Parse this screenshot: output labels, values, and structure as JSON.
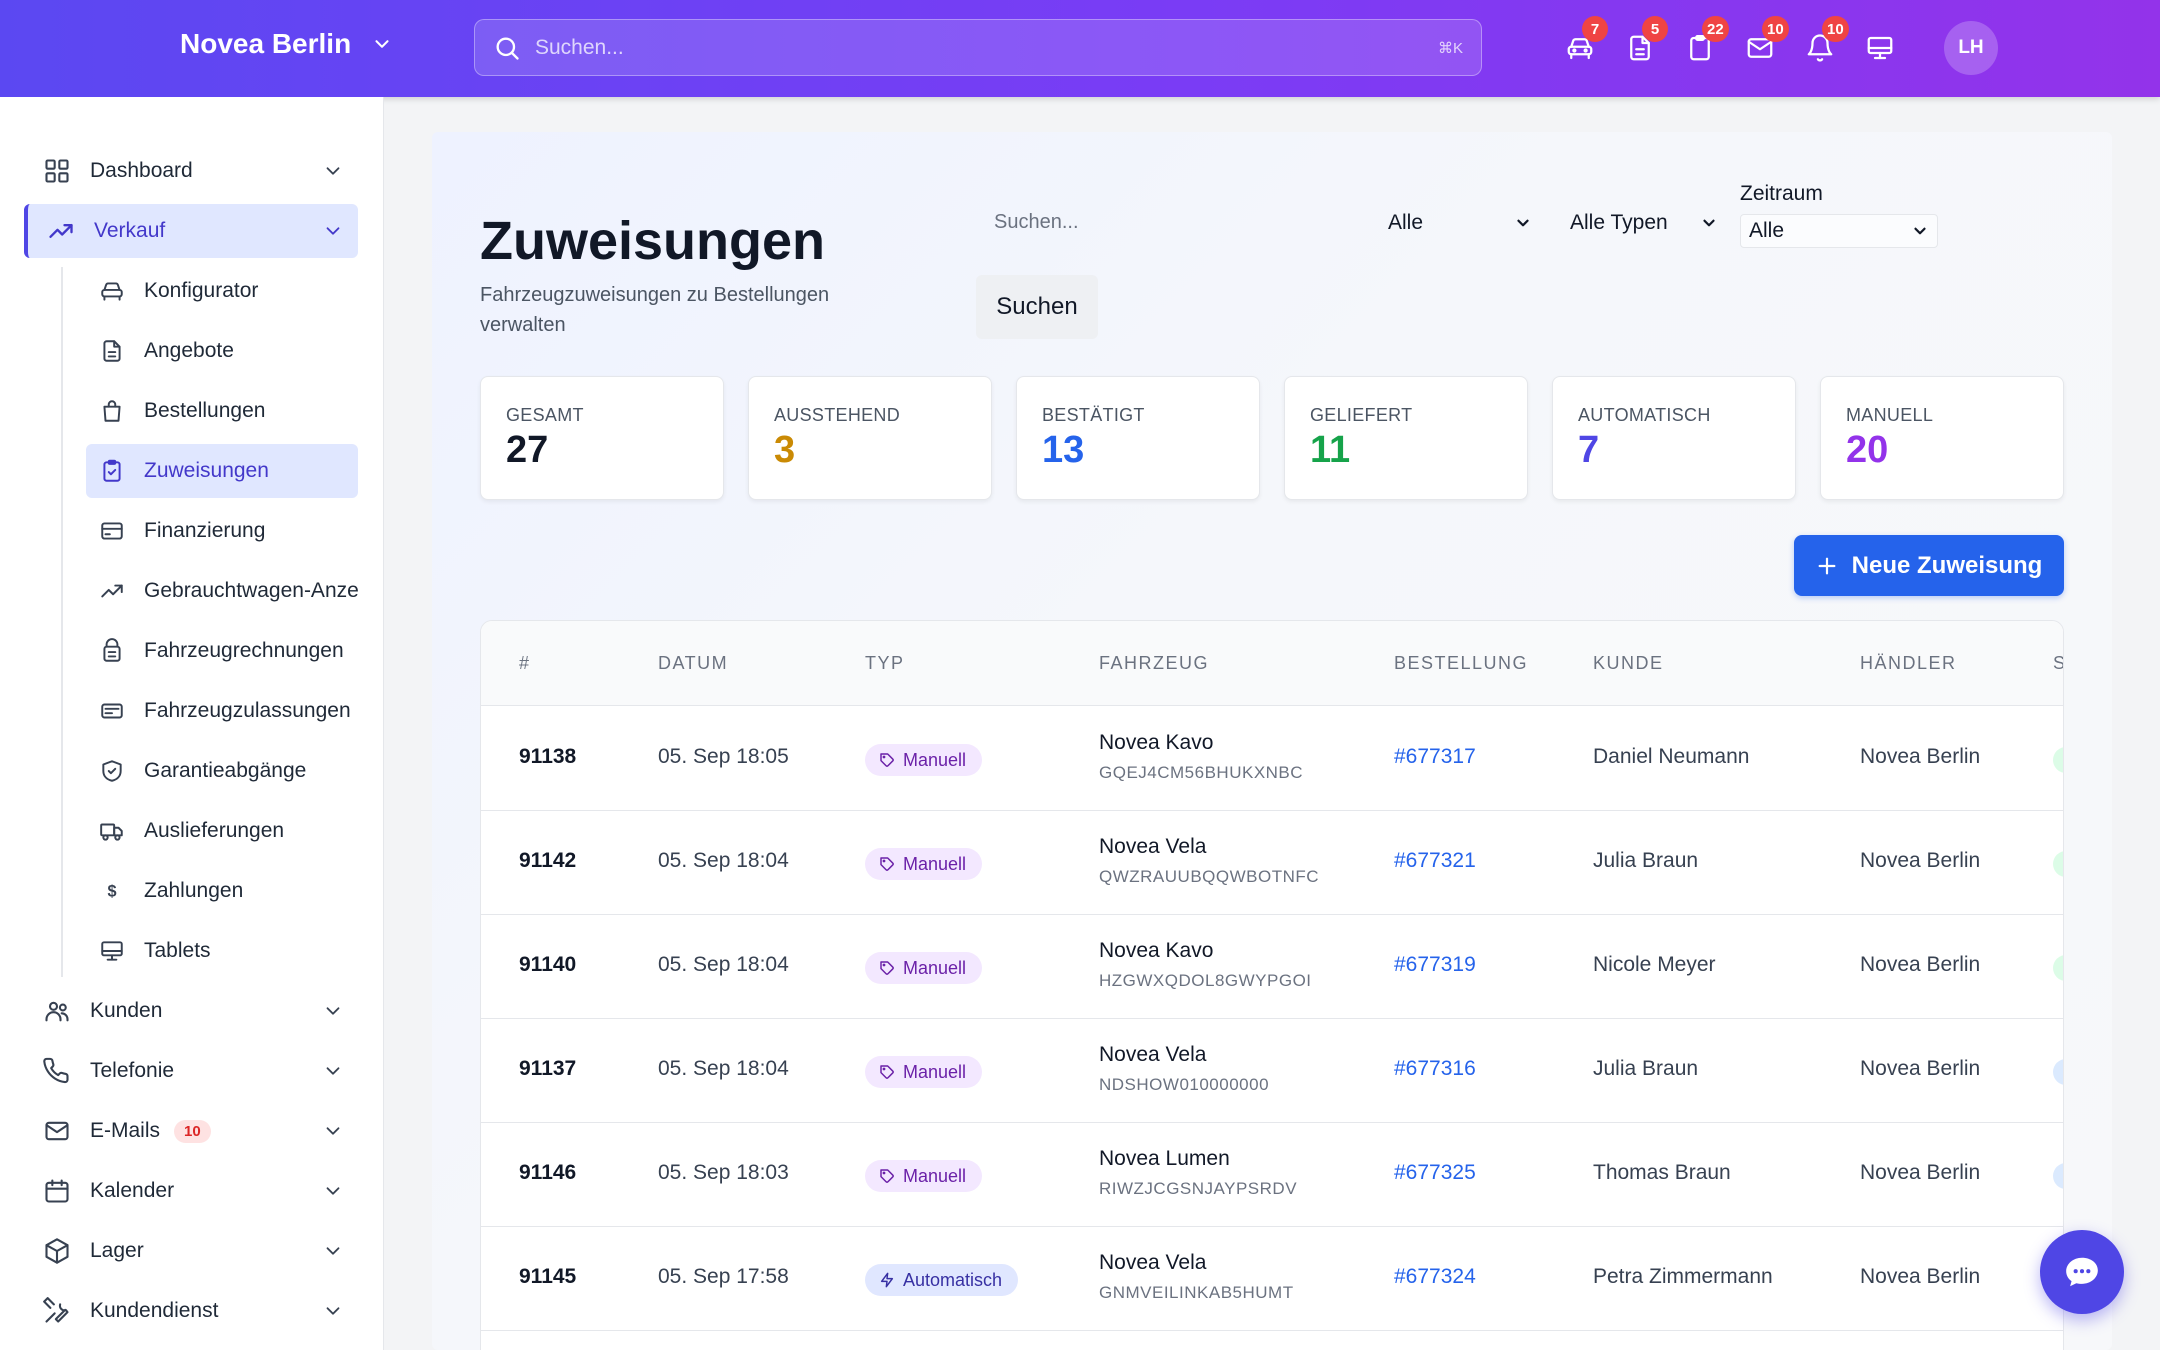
{
  "header": {
    "brand": "Novea Berlin",
    "search_placeholder": "Suchen...",
    "search_shortcut": "⌘K",
    "icons": [
      {
        "name": "car-icon",
        "badge": "7"
      },
      {
        "name": "document-icon",
        "badge": "5"
      },
      {
        "name": "clipboard-icon",
        "badge": "22"
      },
      {
        "name": "mail-icon",
        "badge": "10"
      },
      {
        "name": "bell-icon",
        "badge": "10"
      },
      {
        "name": "tablet-icon",
        "badge": ""
      }
    ],
    "avatar_initials": "LH"
  },
  "sidebar": {
    "items": [
      {
        "label": "Dashboard",
        "icon": "grid-icon"
      },
      {
        "label": "Verkauf",
        "icon": "trending-up-icon",
        "active": true
      },
      {
        "label": "Kunden",
        "icon": "users-icon"
      },
      {
        "label": "Telefonie",
        "icon": "phone-icon"
      },
      {
        "label": "E-Mails",
        "icon": "mail-icon",
        "badge": "10"
      },
      {
        "label": "Kalender",
        "icon": "calendar-icon"
      },
      {
        "label": "Lager",
        "icon": "box-icon"
      },
      {
        "label": "Kundendienst",
        "icon": "wrench-icon"
      }
    ],
    "subitems": [
      {
        "label": "Konfigurator",
        "icon": "car-icon"
      },
      {
        "label": "Angebote",
        "icon": "document-icon"
      },
      {
        "label": "Bestellungen",
        "icon": "bag-icon"
      },
      {
        "label": "Zuweisungen",
        "icon": "clipboard-check-icon",
        "active": true
      },
      {
        "label": "Finanzierung",
        "icon": "credit-card-icon"
      },
      {
        "label": "Gebrauchtwagen-Anzeigen",
        "icon": "trending-up-icon"
      },
      {
        "label": "Fahrzeugrechnungen",
        "icon": "receipt-icon"
      },
      {
        "label": "Fahrzeugzulassungen",
        "icon": "id-card-icon"
      },
      {
        "label": "Garantieabgänge",
        "icon": "shield-icon"
      },
      {
        "label": "Auslieferungen",
        "icon": "truck-icon"
      },
      {
        "label": "Zahlungen",
        "icon": "dollar-icon"
      },
      {
        "label": "Tablets",
        "icon": "tablet-icon"
      }
    ]
  },
  "page": {
    "title": "Zuweisungen",
    "subtitle": "Fahrzeugzuweisungen zu Bestellungen verwalten",
    "filters": {
      "search_placeholder": "Suchen...",
      "search_button": "Suchen",
      "status_select": "Alle",
      "type_select": "Alle Typen",
      "period_label": "Zeitraum",
      "period_select": "Alle"
    },
    "new_button": "Neue Zuweisung"
  },
  "stats": [
    {
      "label": "GESAMT",
      "value": "27",
      "color": "#111827"
    },
    {
      "label": "AUSSTEHEND",
      "value": "3",
      "color": "#ca8a04"
    },
    {
      "label": "BESTÄTIGT",
      "value": "13",
      "color": "#2563eb"
    },
    {
      "label": "GELIEFERT",
      "value": "11",
      "color": "#16a34a"
    },
    {
      "label": "AUTOMATISCH",
      "value": "7",
      "color": "#4f46e5"
    },
    {
      "label": "MANUELL",
      "value": "20",
      "color": "#9333ea"
    }
  ],
  "table": {
    "columns": [
      "#",
      "DATUM",
      "TYP",
      "FAHRZEUG",
      "BESTELLUNG",
      "KUNDE",
      "HÄNDLER",
      "S"
    ],
    "rows": [
      {
        "id": "91138",
        "date": "05. Sep 18:05",
        "type": "Manuell",
        "vehicle": "Novea Kavo",
        "vin": "GQEJ4CM56BHUKXNBC",
        "order": "#677317",
        "customer": "Daniel Neumann",
        "dealer": "Novea Berlin",
        "status_color": "#dcfce7"
      },
      {
        "id": "91142",
        "date": "05. Sep 18:04",
        "type": "Manuell",
        "vehicle": "Novea Vela",
        "vin": "QWZRAUUBQQWBOTNFC",
        "order": "#677321",
        "customer": "Julia Braun",
        "dealer": "Novea Berlin",
        "status_color": "#dcfce7"
      },
      {
        "id": "91140",
        "date": "05. Sep 18:04",
        "type": "Manuell",
        "vehicle": "Novea Kavo",
        "vin": "HZGWXQDOL8GWYPGOI",
        "order": "#677319",
        "customer": "Nicole Meyer",
        "dealer": "Novea Berlin",
        "status_color": "#dcfce7"
      },
      {
        "id": "91137",
        "date": "05. Sep 18:04",
        "type": "Manuell",
        "vehicle": "Novea Vela",
        "vin": "NDSHOW010000000",
        "order": "#677316",
        "customer": "Julia Braun",
        "dealer": "Novea Berlin",
        "status_color": "#dbeafe"
      },
      {
        "id": "91146",
        "date": "05. Sep 18:03",
        "type": "Manuell",
        "vehicle": "Novea Lumen",
        "vin": "RIWZJCGSNJAYPSRDV",
        "order": "#677325",
        "customer": "Thomas Braun",
        "dealer": "Novea Berlin",
        "status_color": "#dbeafe"
      },
      {
        "id": "91145",
        "date": "05. Sep 17:58",
        "type": "Automatisch",
        "vehicle": "Novea Vela",
        "vin": "GNMVEILINKAB5HUMT",
        "order": "#677324",
        "customer": "Petra Zimmermann",
        "dealer": "Novea Berlin",
        "status_color": "#dbeafe"
      }
    ]
  }
}
